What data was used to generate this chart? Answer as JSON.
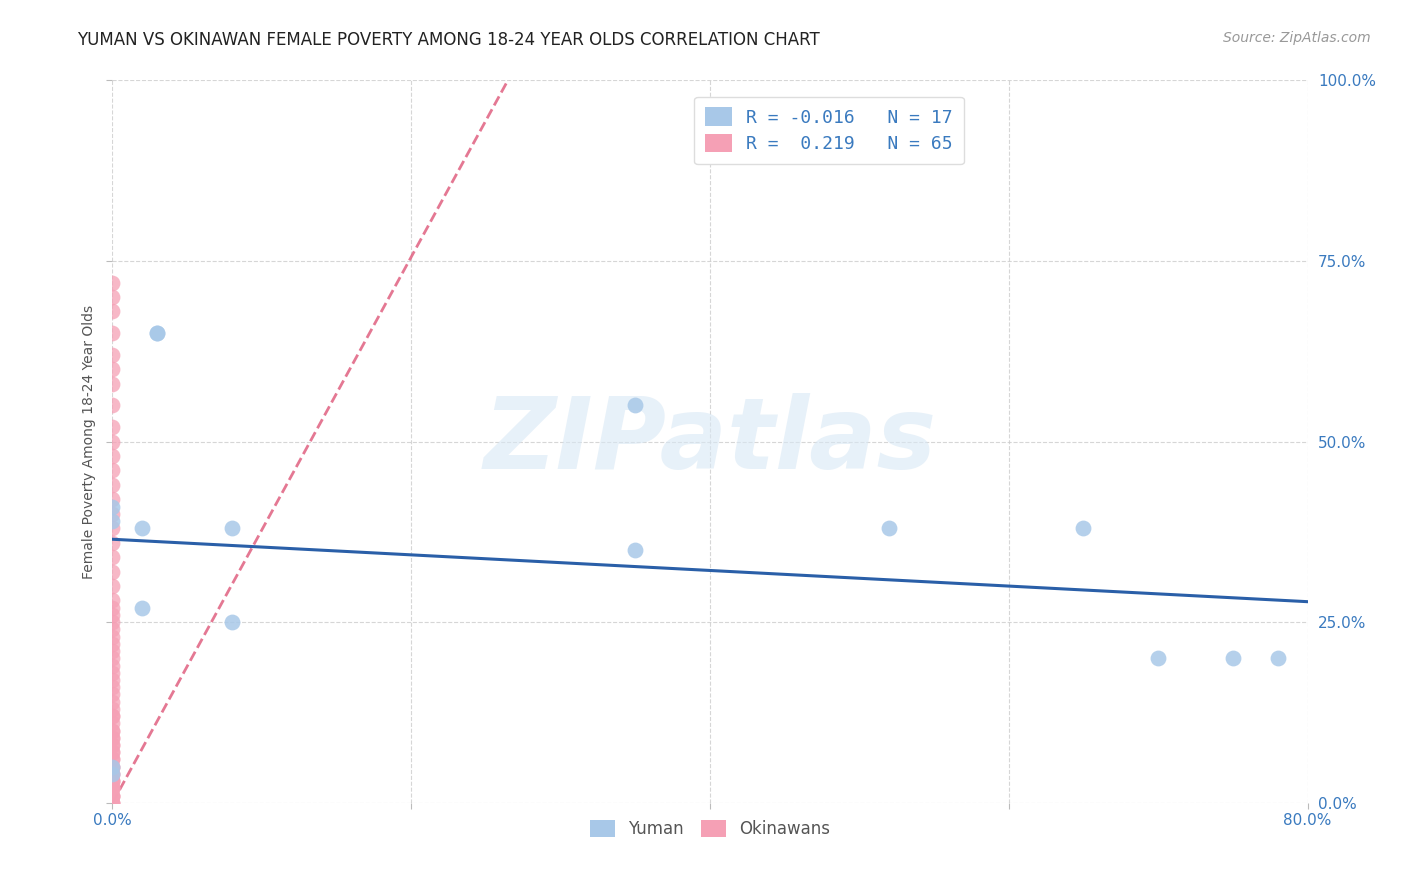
{
  "title": "YUMAN VS OKINAWAN FEMALE POVERTY AMONG 18-24 YEAR OLDS CORRELATION CHART",
  "source": "Source: ZipAtlas.com",
  "ylabel": "Female Poverty Among 18-24 Year Olds",
  "xlim": [
    0.0,
    0.8
  ],
  "ylim": [
    0.0,
    1.0
  ],
  "xticks": [
    0.0,
    0.2,
    0.4,
    0.6,
    0.8
  ],
  "yticks": [
    0.0,
    0.25,
    0.5,
    0.75,
    1.0
  ],
  "xticklabels": [
    "0.0%",
    "",
    "",
    "",
    "80.0%"
  ],
  "yticklabels": [
    "0.0%",
    "25.0%",
    "50.0%",
    "75.0%",
    "100.0%"
  ],
  "background_color": "#ffffff",
  "watermark_text": "ZIPatlas",
  "yuman_x": [
    0.0,
    0.0,
    0.0,
    0.02,
    0.03,
    0.03,
    0.08,
    0.08,
    0.35,
    0.35,
    0.52,
    0.65,
    0.7,
    0.75,
    0.78,
    0.0,
    0.02
  ],
  "yuman_y": [
    0.04,
    0.39,
    0.41,
    0.27,
    0.65,
    0.65,
    0.25,
    0.38,
    0.35,
    0.55,
    0.38,
    0.38,
    0.2,
    0.2,
    0.2,
    0.05,
    0.38
  ],
  "okinawan_x": [
    0.0,
    0.0,
    0.0,
    0.0,
    0.0,
    0.0,
    0.0,
    0.0,
    0.0,
    0.0,
    0.0,
    0.0,
    0.0,
    0.0,
    0.0,
    0.0,
    0.0,
    0.0,
    0.0,
    0.0,
    0.0,
    0.0,
    0.0,
    0.0,
    0.0,
    0.0,
    0.0,
    0.0,
    0.0,
    0.0,
    0.0,
    0.0,
    0.0,
    0.0,
    0.0,
    0.0,
    0.0,
    0.0,
    0.0,
    0.0,
    0.0,
    0.0,
    0.0,
    0.0,
    0.0,
    0.0,
    0.0,
    0.0,
    0.0,
    0.0,
    0.0,
    0.0,
    0.0,
    0.0,
    0.0,
    0.0,
    0.0,
    0.0,
    0.0,
    0.0,
    0.0,
    0.0,
    0.0,
    0.0,
    0.0
  ],
  "okinawan_y": [
    0.0,
    0.0,
    0.01,
    0.01,
    0.02,
    0.02,
    0.02,
    0.03,
    0.03,
    0.04,
    0.04,
    0.05,
    0.05,
    0.06,
    0.06,
    0.07,
    0.07,
    0.08,
    0.08,
    0.09,
    0.09,
    0.1,
    0.1,
    0.11,
    0.12,
    0.12,
    0.13,
    0.14,
    0.15,
    0.16,
    0.17,
    0.18,
    0.19,
    0.2,
    0.21,
    0.22,
    0.23,
    0.24,
    0.25,
    0.26,
    0.27,
    0.28,
    0.3,
    0.32,
    0.34,
    0.36,
    0.38,
    0.4,
    0.42,
    0.44,
    0.46,
    0.48,
    0.5,
    0.52,
    0.55,
    0.58,
    0.6,
    0.62,
    0.65,
    0.68,
    0.7,
    0.72,
    0.0,
    0.01,
    0.03
  ],
  "yuman_color": "#a8c8e8",
  "okinawan_color": "#f5a0b5",
  "yuman_R": -0.016,
  "okinawan_R": 0.219,
  "yuman_N": 17,
  "okinawan_N": 65,
  "regression_line_yuman_color": "#2a5fa8",
  "regression_line_okinawan_color": "#e06080",
  "okinawan_regline_x": [
    0.0,
    0.27
  ],
  "okinawan_regline_y": [
    0.0,
    1.02
  ],
  "title_fontsize": 12,
  "axis_label_fontsize": 10,
  "tick_fontsize": 11,
  "source_fontsize": 10
}
